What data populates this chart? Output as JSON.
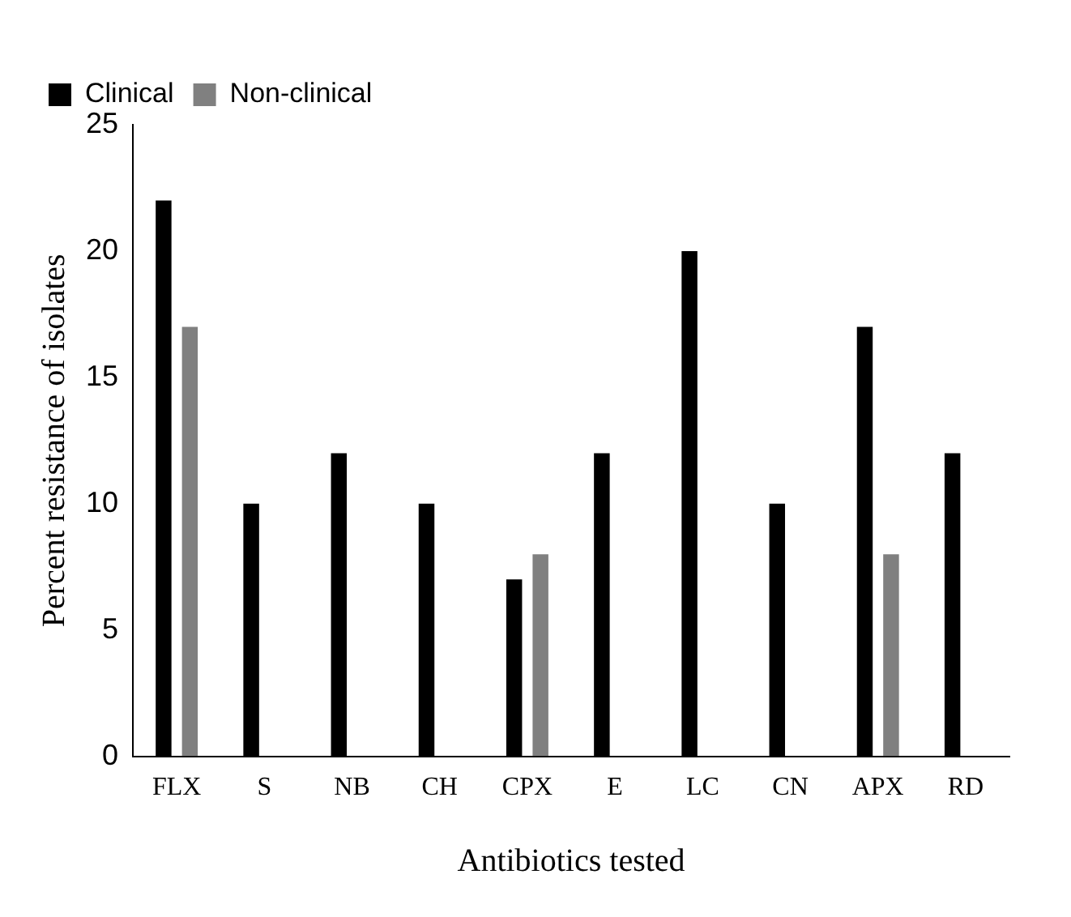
{
  "chart_data": {
    "type": "bar",
    "xlabel": "Antibiotics tested",
    "ylabel": "Percent resistance of isolates",
    "categories": [
      "FLX",
      "S",
      "NB",
      "CH",
      "CPX",
      "E",
      "LC",
      "CN",
      "APX",
      "RD"
    ],
    "series": [
      {
        "name": "Clinical",
        "color": "#000000",
        "values": [
          22,
          10,
          12,
          10,
          7,
          12,
          20,
          10,
          17,
          12
        ]
      },
      {
        "name": "Non-clinical",
        "color": "#808080",
        "values": [
          17,
          0,
          0,
          0,
          8,
          0,
          0,
          0,
          8,
          0
        ]
      }
    ],
    "ylim": [
      0,
      25
    ],
    "yticks": [
      0,
      5,
      10,
      15,
      20,
      25
    ],
    "grid": false,
    "legend": "top left"
  }
}
